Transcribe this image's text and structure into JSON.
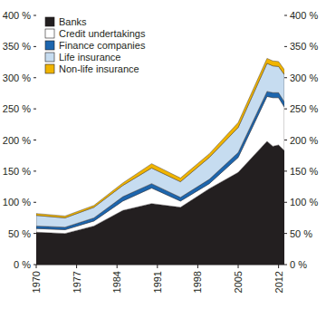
{
  "chart_data": {
    "type": "area",
    "stacked": true,
    "grid": false,
    "legend": "top-left",
    "x": [
      1970,
      1975,
      1980,
      1985,
      1990,
      1995,
      2000,
      2005,
      2010,
      2011,
      2012,
      2013
    ],
    "xlim": [
      1970,
      2013
    ],
    "xticks": [
      1970,
      1977,
      1984,
      1991,
      1998,
      2005,
      2012
    ],
    "ylim": [
      0,
      400
    ],
    "yticks": [
      {
        "value": 0,
        "label": "0 %"
      },
      {
        "value": 50,
        "label": "50 %"
      },
      {
        "value": 100,
        "label": "100 %"
      },
      {
        "value": 150,
        "label": "150 %"
      },
      {
        "value": 200,
        "label": "200 %"
      },
      {
        "value": 250,
        "label": "250 %"
      },
      {
        "value": 300,
        "label": "300 %"
      },
      {
        "value": 350,
        "label": "350 %"
      },
      {
        "value": 400,
        "label": "400 %"
      }
    ],
    "series": [
      {
        "name": "Banks",
        "color": "#231f20",
        "values": [
          52,
          50,
          62,
          87,
          98,
          92,
          122,
          148,
          198,
          190,
          192,
          183
        ]
      },
      {
        "name": "Credit undertakings",
        "color": "#ffffff",
        "values": [
          6,
          6,
          8,
          15,
          25,
          10,
          8,
          24,
          72,
          78,
          76,
          70
        ]
      },
      {
        "name": "Finance companies",
        "color": "#1d66ae",
        "values": [
          4,
          4,
          5,
          7,
          7,
          6,
          7,
          8,
          8,
          8,
          8,
          8
        ]
      },
      {
        "name": "Life insurance",
        "color": "#c6dcf0",
        "values": [
          17,
          15,
          17,
          18,
          25,
          25,
          35,
          40,
          45,
          43,
          42,
          44
        ]
      },
      {
        "name": "Non-life insurance",
        "color": "#f0b400",
        "values": [
          3,
          3,
          3,
          4,
          7,
          6,
          6,
          8,
          8,
          8,
          8,
          8
        ]
      }
    ]
  }
}
